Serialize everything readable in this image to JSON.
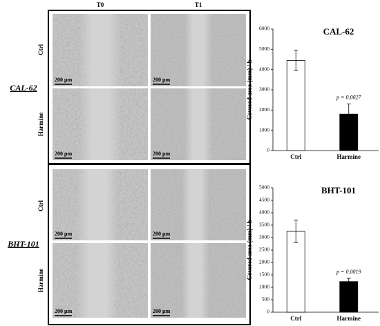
{
  "figure": {
    "column_labels": [
      "T0",
      "T1"
    ],
    "row_labels": [
      "Ctrl",
      "Harmine"
    ],
    "cell_lines": [
      "CAL-62",
      "BHT-101"
    ],
    "scale_bar": "200 µm"
  },
  "chart_data": [
    {
      "type": "bar",
      "title": "CAL-62",
      "y_label": "Covered area (mm) / h",
      "categories": [
        "Ctrl",
        "Harmine"
      ],
      "values": [
        4450,
        1800
      ],
      "errors": [
        500,
        500
      ],
      "colors": [
        "#ffffff",
        "#000000"
      ],
      "annotation": "p = 0.0027",
      "ylim": [
        0,
        6000
      ],
      "yticks": [
        0,
        1000,
        2000,
        3000,
        4000,
        5000,
        6000
      ]
    },
    {
      "type": "bar",
      "title": "BHT-101",
      "y_label": "Covered area (mm) / h",
      "categories": [
        "Ctrl",
        "Harmine"
      ],
      "values": [
        3250,
        1230
      ],
      "errors": [
        450,
        130
      ],
      "colors": [
        "#ffffff",
        "#000000"
      ],
      "annotation": "p = 0.0019",
      "ylim": [
        0,
        5000
      ],
      "yticks": [
        0,
        500,
        1000,
        1500,
        2000,
        2500,
        3000,
        3500,
        4000,
        4500,
        5000
      ]
    }
  ]
}
